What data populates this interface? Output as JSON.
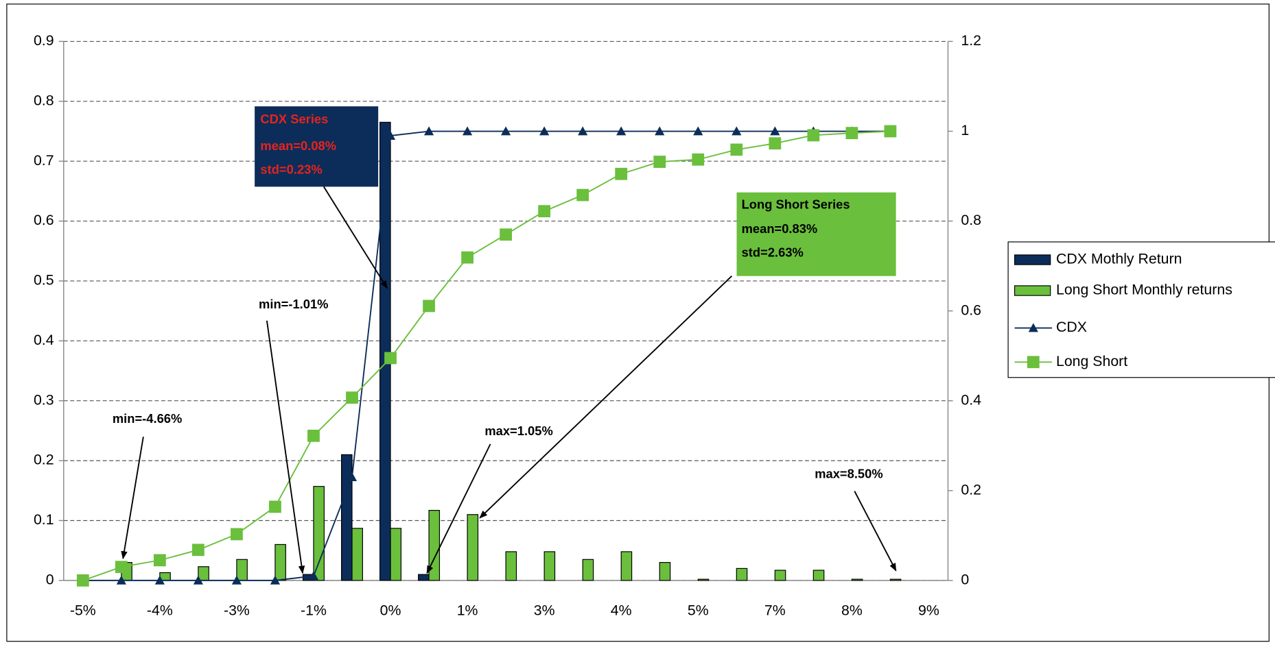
{
  "chart_data": {
    "type": "combo",
    "categories": [
      "-5%",
      null,
      "-4%",
      null,
      "-3%",
      null,
      "-1%",
      null,
      "0%",
      null,
      "1%",
      null,
      "3%",
      null,
      "4%",
      null,
      "5%",
      null,
      "7%",
      null,
      "8%",
      null,
      "9%"
    ],
    "ylim": [
      0,
      0.9
    ],
    "yticks": [
      0,
      0.1,
      0.2,
      0.3,
      0.4,
      0.5,
      0.6,
      0.7,
      0.8,
      0.9
    ],
    "y2lim": [
      0,
      1.2
    ],
    "y2ticks": [
      0,
      0.2,
      0.4,
      0.6,
      0.8,
      1,
      1.2
    ],
    "grid": true,
    "legend": "right",
    "series": [
      {
        "name": "CDX Mothly Return",
        "type": "bar",
        "color": "#0c2d5a",
        "values": [
          0,
          0,
          0,
          0,
          0,
          0,
          0.01,
          0.21,
          0.765,
          0.01,
          0,
          0,
          0,
          0,
          0,
          0,
          0,
          0,
          0,
          0,
          0,
          0,
          null
        ]
      },
      {
        "name": "Long Short Monthly returns",
        "type": "bar",
        "color": "#6abf3c",
        "values": [
          0,
          0.03,
          0.013,
          0.023,
          0.035,
          0.06,
          0.157,
          0.087,
          0.087,
          0.117,
          0.11,
          0.048,
          0.048,
          0.035,
          0.048,
          0.03,
          0.002,
          0.02,
          0.017,
          0.017,
          0.002,
          0.002,
          null
        ]
      },
      {
        "name": "CDX",
        "type": "line",
        "marker": "triangle",
        "axis": "y2",
        "color": "#0c2d5a",
        "values": [
          0,
          0,
          0,
          0,
          0,
          0,
          0.01,
          0.23,
          0.99,
          1,
          1,
          1,
          1,
          1,
          1,
          1,
          1,
          1,
          1,
          1,
          1,
          1,
          null
        ]
      },
      {
        "name": "Long Short",
        "type": "line",
        "marker": "square",
        "axis": "y2",
        "color": "#6abf3c",
        "values": [
          0,
          0.03,
          0.045,
          0.068,
          0.103,
          0.164,
          0.322,
          0.407,
          0.495,
          0.611,
          0.719,
          0.77,
          0.822,
          0.858,
          0.905,
          0.932,
          0.937,
          0.959,
          0.973,
          0.991,
          0.996,
          1,
          null
        ]
      }
    ],
    "annotations": [
      {
        "lines": [
          "CDX Series",
          "mean=0.08%",
          "std=0.23%"
        ]
      },
      {
        "lines": [
          "Long Short Series",
          "mean=0.83%",
          "std=2.63%"
        ]
      },
      {
        "lines": [
          "min=-1.01%"
        ]
      },
      {
        "lines": [
          "min=-4.66%"
        ]
      },
      {
        "lines": [
          "max=1.05%"
        ]
      },
      {
        "lines": [
          "max=8.50%"
        ]
      }
    ]
  }
}
